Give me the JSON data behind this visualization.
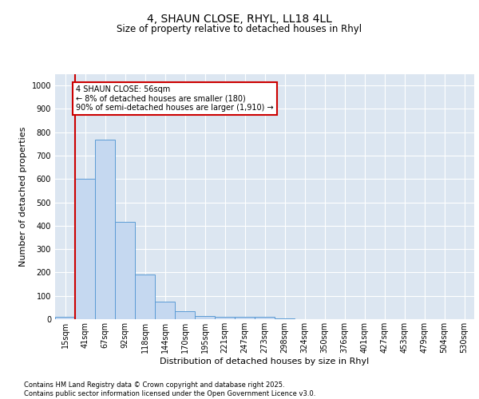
{
  "title_line1": "4, SHAUN CLOSE, RHYL, LL18 4LL",
  "title_line2": "Size of property relative to detached houses in Rhyl",
  "xlabel": "Distribution of detached houses by size in Rhyl",
  "ylabel": "Number of detached properties",
  "categories": [
    "15sqm",
    "41sqm",
    "67sqm",
    "92sqm",
    "118sqm",
    "144sqm",
    "170sqm",
    "195sqm",
    "221sqm",
    "247sqm",
    "273sqm",
    "298sqm",
    "324sqm",
    "350sqm",
    "376sqm",
    "401sqm",
    "427sqm",
    "453sqm",
    "479sqm",
    "504sqm",
    "530sqm"
  ],
  "values": [
    10,
    600,
    770,
    415,
    190,
    75,
    35,
    15,
    10,
    10,
    10,
    5,
    0,
    0,
    0,
    0,
    0,
    0,
    0,
    0,
    0
  ],
  "bar_color": "#c5d8f0",
  "bar_edge_color": "#5b9bd5",
  "background_color": "#dce6f1",
  "grid_color": "#ffffff",
  "vline_color": "#cc0000",
  "vline_bar_index": 1,
  "annotation_text": "4 SHAUN CLOSE: 56sqm\n← 8% of detached houses are smaller (180)\n90% of semi-detached houses are larger (1,910) →",
  "annotation_box_color": "#ffffff",
  "annotation_box_edge": "#cc0000",
  "ylim": [
    0,
    1050
  ],
  "yticks": [
    0,
    100,
    200,
    300,
    400,
    500,
    600,
    700,
    800,
    900,
    1000
  ],
  "title_fontsize": 10,
  "subtitle_fontsize": 8.5,
  "xlabel_fontsize": 8,
  "ylabel_fontsize": 8,
  "tick_fontsize": 7,
  "ann_fontsize": 7,
  "footer_fontsize": 6,
  "footer_line1": "Contains HM Land Registry data © Crown copyright and database right 2025.",
  "footer_line2": "Contains public sector information licensed under the Open Government Licence v3.0."
}
